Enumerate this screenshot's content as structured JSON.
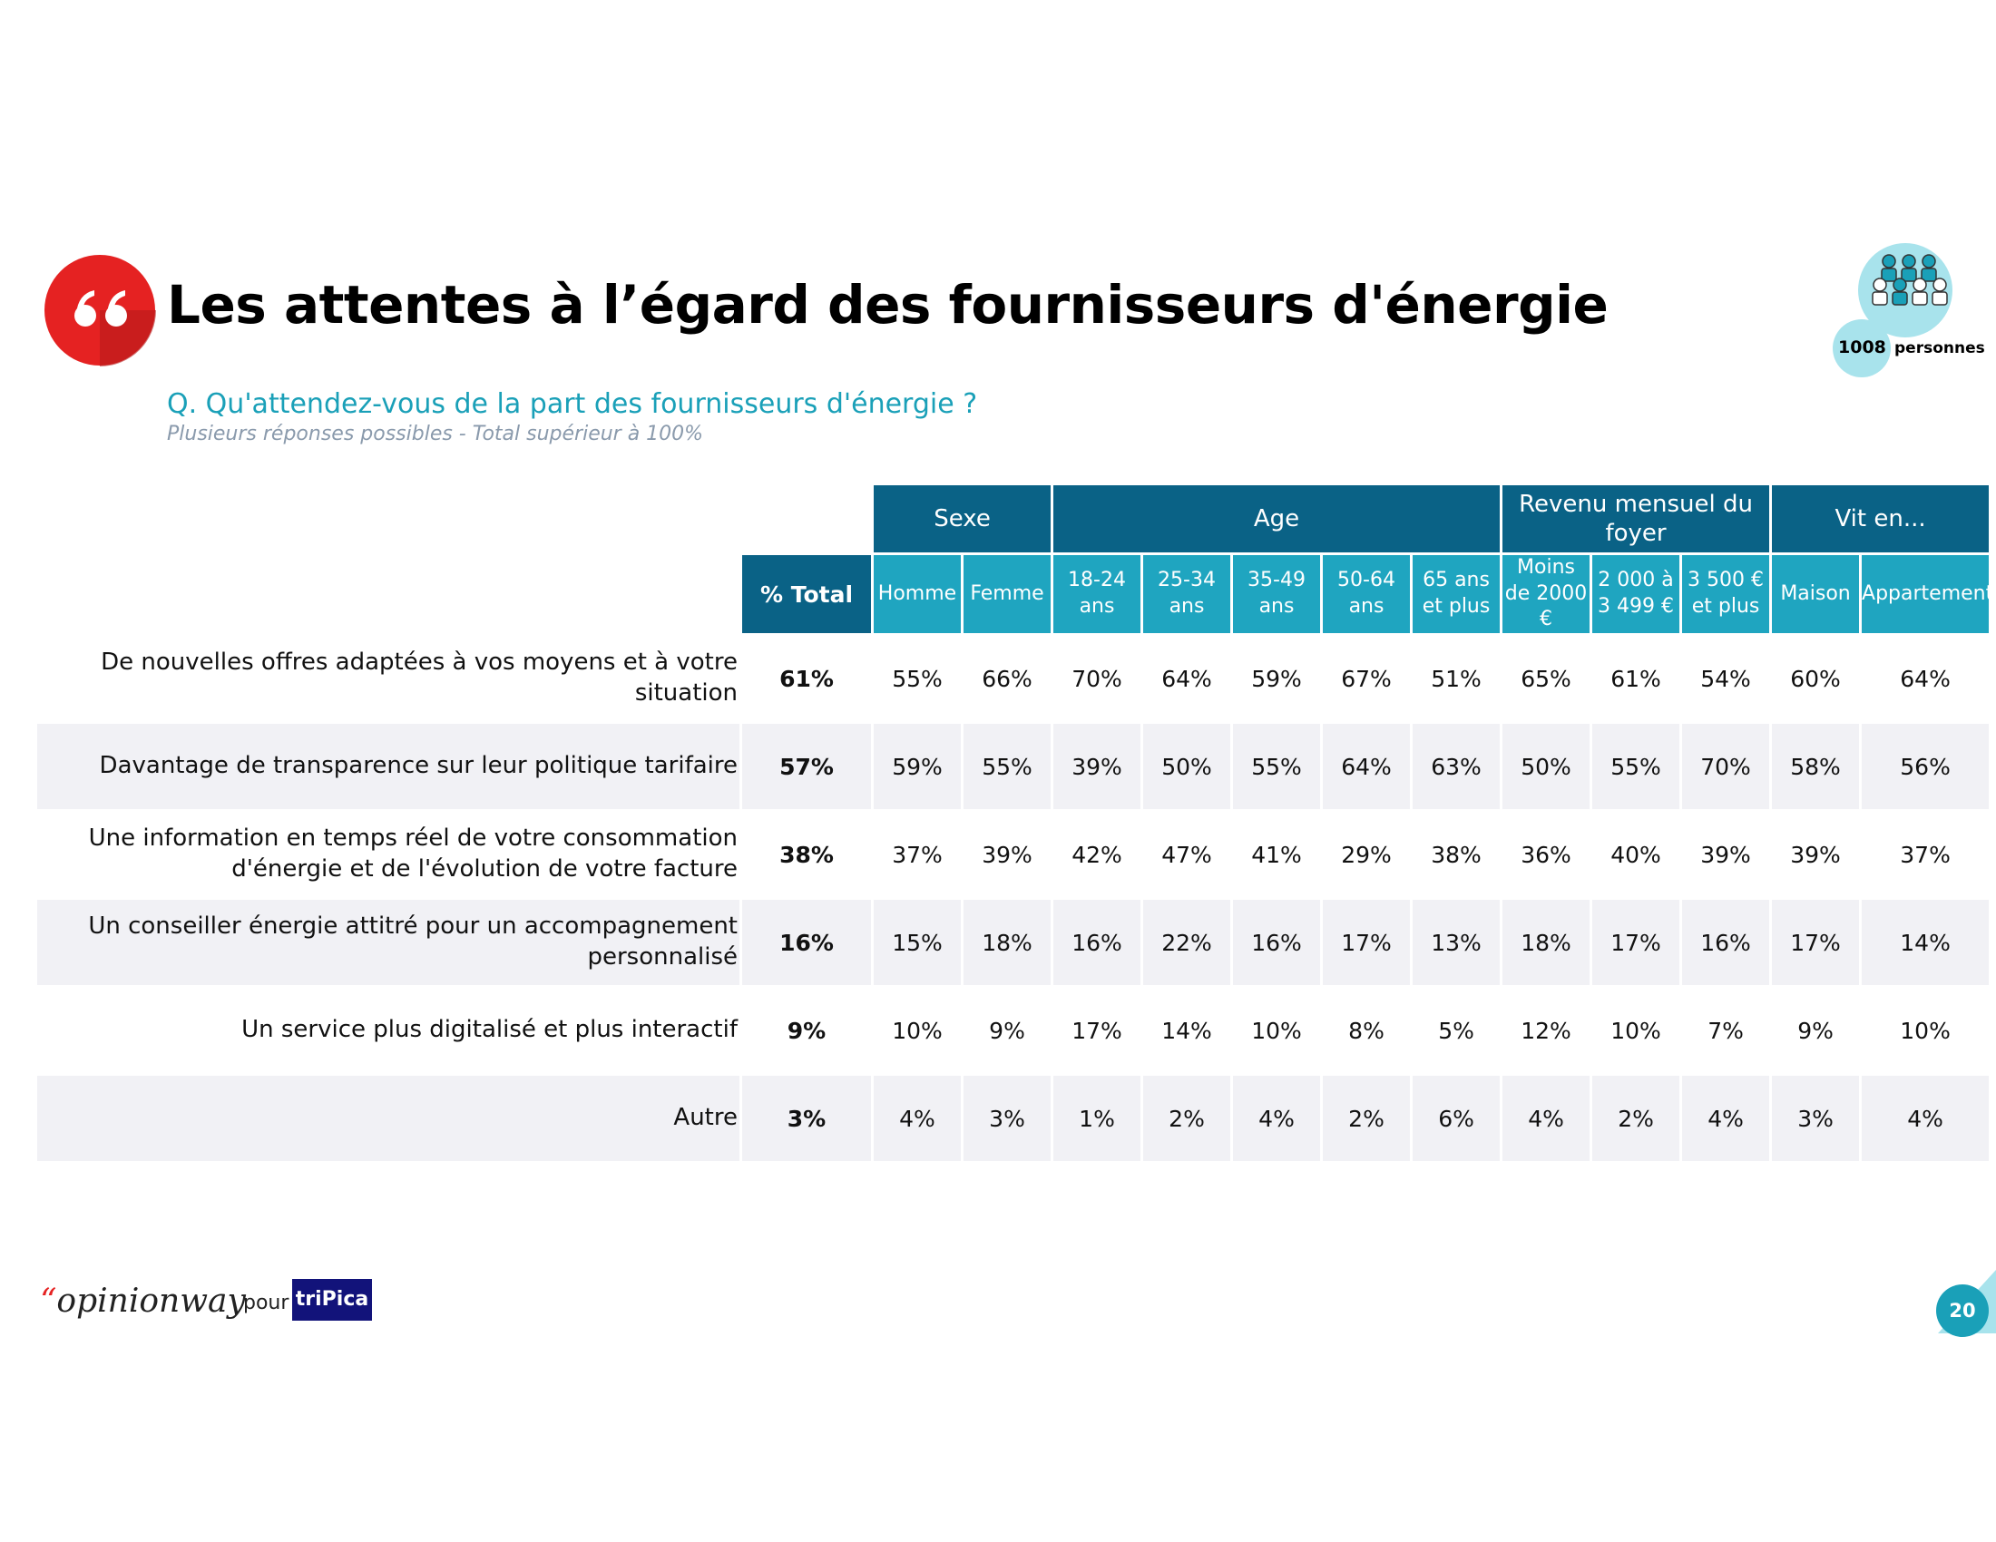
{
  "header": {
    "title": "Les attentes à l’égard des fournisseurs d'énergie",
    "question": "Q. Qu'attendez-vous de la part des fournisseurs d'énergie ?",
    "note": "Plusieurs réponses possibles - Total supérieur à 100%"
  },
  "badge": {
    "count": "1008",
    "label": "personnes"
  },
  "table": {
    "groups": [
      "Sexe",
      "Age",
      "Revenu mensuel du foyer",
      "Vit en..."
    ],
    "total_header": "% Total",
    "columns": [
      "Homme",
      "Femme",
      "18-24 ans",
      "25-34 ans",
      "35-49 ans",
      "50-64 ans",
      "65 ans et plus",
      "Moins de 2000 €",
      "2 000 à 3 499 €",
      "3 500 € et plus",
      "Maison",
      "Appartement"
    ],
    "rows": [
      {
        "label": "De nouvelles offres adaptées à vos moyens et à votre situation",
        "total": "61%",
        "values": [
          "55%",
          "66%",
          "70%",
          "64%",
          "59%",
          "67%",
          "51%",
          "65%",
          "61%",
          "54%",
          "60%",
          "64%"
        ]
      },
      {
        "label": "Davantage de transparence sur leur politique tarifaire",
        "total": "57%",
        "values": [
          "59%",
          "55%",
          "39%",
          "50%",
          "55%",
          "64%",
          "63%",
          "50%",
          "55%",
          "70%",
          "58%",
          "56%"
        ]
      },
      {
        "label": "Une information en temps réel de votre consommation d'énergie et de l'évolution de votre facture",
        "total": "38%",
        "values": [
          "37%",
          "39%",
          "42%",
          "47%",
          "41%",
          "29%",
          "38%",
          "36%",
          "40%",
          "39%",
          "39%",
          "37%"
        ]
      },
      {
        "label": "Un conseiller énergie attitré pour un accompagnement personnalisé",
        "total": "16%",
        "values": [
          "15%",
          "18%",
          "16%",
          "22%",
          "16%",
          "17%",
          "13%",
          "18%",
          "17%",
          "16%",
          "17%",
          "14%"
        ]
      },
      {
        "label": "Un service plus digitalisé et plus interactif",
        "total": "9%",
        "values": [
          "10%",
          "9%",
          "17%",
          "14%",
          "10%",
          "8%",
          "5%",
          "12%",
          "10%",
          "7%",
          "9%",
          "10%"
        ]
      },
      {
        "label": "Autre",
        "total": "3%",
        "values": [
          "4%",
          "3%",
          "1%",
          "2%",
          "4%",
          "2%",
          "6%",
          "4%",
          "2%",
          "4%",
          "3%",
          "4%"
        ]
      }
    ]
  },
  "footer": {
    "brand": "opinionway",
    "pour": "pour",
    "client": "triPica",
    "page": "20"
  }
}
